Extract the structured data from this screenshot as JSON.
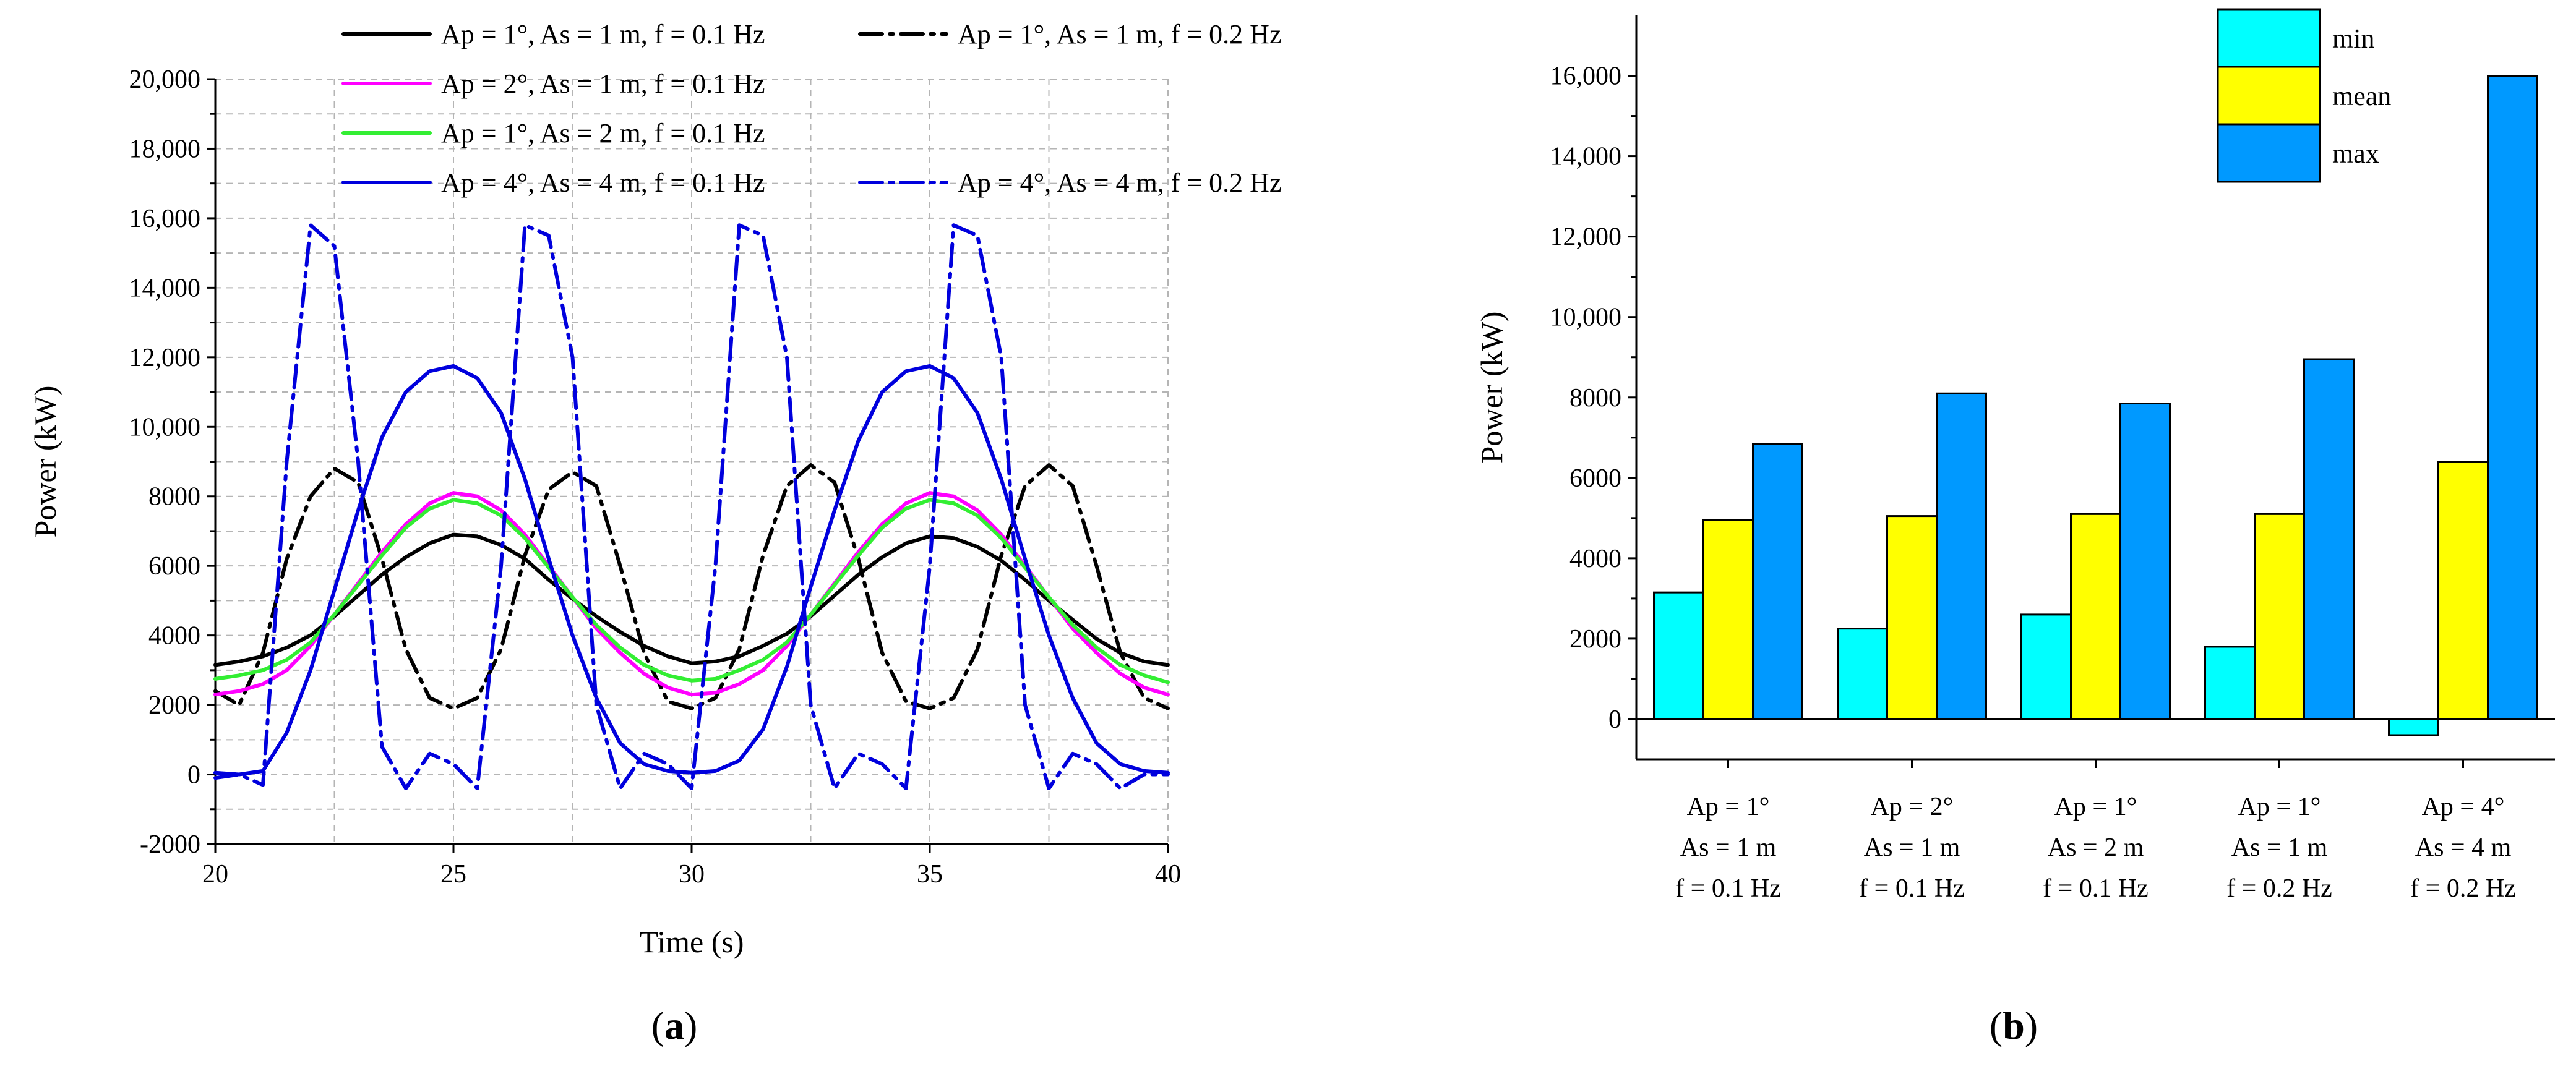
{
  "colors": {
    "black": "#000000",
    "magenta": "#ff00ff",
    "green": "#33ee33",
    "blue": "#0000dd",
    "cyan": "#00ffff",
    "yellow": "#ffff00",
    "sky": "#0099ff"
  },
  "captions": {
    "a": [
      "(",
      "a",
      ")"
    ],
    "b": [
      "(",
      "b",
      ")"
    ]
  },
  "chart_data": [
    {
      "type": "line",
      "xlabel": "Time (s)",
      "ylabel": "Power (kW)",
      "xlim": [
        20,
        40
      ],
      "ylim": [
        -2000,
        20000
      ],
      "xticks": [
        20,
        25,
        30,
        35,
        40
      ],
      "xtick_labels": [
        "20",
        "25",
        "30",
        "35",
        "40"
      ],
      "yticks": [
        -2000,
        0,
        2000,
        4000,
        6000,
        8000,
        10000,
        12000,
        14000,
        16000,
        18000,
        20000
      ],
      "ytick_labels": [
        "-2000",
        "0",
        "2000",
        "4000",
        "6000",
        "8000",
        "10,000",
        "12,000",
        "14,000",
        "16,000",
        "18,000",
        "20,000"
      ],
      "grid": true,
      "legend": "top",
      "x": [
        20,
        20.5,
        21,
        21.5,
        22,
        22.5,
        23,
        23.5,
        24,
        24.5,
        25,
        25.5,
        26,
        26.5,
        27,
        27.5,
        28,
        28.5,
        29,
        29.5,
        30,
        30.5,
        31,
        31.5,
        32,
        32.5,
        33,
        33.5,
        34,
        34.5,
        35,
        35.5,
        36,
        36.5,
        37,
        37.5,
        38,
        38.5,
        39,
        39.5,
        40
      ],
      "series": [
        {
          "name": "Ap = 1°, As = 1 m, f = 0.1 Hz",
          "color": "#000000",
          "dash": "solid",
          "values": [
            3150,
            3250,
            3400,
            3650,
            4000,
            4550,
            5150,
            5750,
            6250,
            6650,
            6900,
            6850,
            6600,
            6200,
            5600,
            5050,
            4550,
            4100,
            3700,
            3400,
            3200,
            3250,
            3400,
            3700,
            4050,
            4550,
            5150,
            5750,
            6250,
            6650,
            6850,
            6800,
            6550,
            6150,
            5600,
            5000,
            4450,
            3900,
            3500,
            3250,
            3150
          ]
        },
        {
          "name": "Ap = 1°, As = 1 m, f = 0.2 Hz",
          "color": "#000000",
          "dash": "dashdot",
          "values": [
            2400,
            2000,
            3500,
            6200,
            8000,
            8800,
            8400,
            6200,
            3600,
            2200,
            1900,
            2200,
            3600,
            6300,
            8200,
            8700,
            8300,
            6000,
            3500,
            2100,
            1900,
            2200,
            3600,
            6300,
            8300,
            8900,
            8400,
            6200,
            3500,
            2100,
            1900,
            2200,
            3600,
            6300,
            8300,
            8900,
            8300,
            6000,
            3500,
            2200,
            1900
          ]
        },
        {
          "name": "Ap = 2°, As = 1 m, f = 0.1 Hz",
          "color": "#ff00ff",
          "dash": "solid",
          "values": [
            2300,
            2400,
            2600,
            3000,
            3700,
            4600,
            5500,
            6400,
            7200,
            7800,
            8100,
            8000,
            7600,
            6900,
            6000,
            5100,
            4200,
            3500,
            2900,
            2500,
            2300,
            2350,
            2600,
            3000,
            3700,
            4600,
            5500,
            6400,
            7200,
            7800,
            8100,
            8000,
            7600,
            6900,
            6000,
            5100,
            4200,
            3500,
            2900,
            2500,
            2300
          ]
        },
        {
          "name": "Ap = 1°, As = 2 m, f = 0.1 Hz",
          "color": "#33ee33",
          "dash": "solid",
          "values": [
            2750,
            2850,
            3000,
            3300,
            3800,
            4600,
            5450,
            6300,
            7100,
            7650,
            7900,
            7800,
            7450,
            6800,
            5950,
            5100,
            4300,
            3650,
            3150,
            2850,
            2700,
            2750,
            3000,
            3300,
            3800,
            4600,
            5450,
            6300,
            7100,
            7650,
            7900,
            7800,
            7450,
            6800,
            5950,
            5100,
            4300,
            3650,
            3150,
            2850,
            2650
          ]
        },
        {
          "name": "Ap = 4°, As = 4 m, f = 0.1 Hz",
          "color": "#0000dd",
          "dash": "solid",
          "values": [
            50,
            0,
            100,
            1200,
            3000,
            5300,
            7600,
            9700,
            11000,
            11600,
            11750,
            11400,
            10400,
            8500,
            6200,
            4000,
            2200,
            900,
            300,
            100,
            50,
            100,
            400,
            1300,
            3100,
            5400,
            7600,
            9600,
            11000,
            11600,
            11750,
            11400,
            10400,
            8500,
            6200,
            4000,
            2200,
            900,
            300,
            100,
            50
          ]
        },
        {
          "name": "Ap = 4°, As = 4 m, f = 0.2 Hz",
          "color": "#0000dd",
          "dash": "dashdot",
          "values": [
            -100,
            0,
            -300,
            9000,
            15800,
            15200,
            9000,
            800,
            -400,
            600,
            300,
            -400,
            6000,
            15800,
            15500,
            12000,
            2000,
            -400,
            600,
            300,
            -400,
            6000,
            15800,
            15500,
            12000,
            2000,
            -400,
            600,
            300,
            -400,
            6000,
            15800,
            15500,
            12000,
            2000,
            -400,
            600,
            300,
            -400,
            0,
            0
          ]
        }
      ]
    },
    {
      "type": "bar",
      "ylabel": "Power (kW)",
      "ylim": [
        -1000,
        17500
      ],
      "yticks": [
        0,
        2000,
        4000,
        6000,
        8000,
        10000,
        12000,
        14000,
        16000
      ],
      "ytick_labels": [
        "0",
        "2000",
        "4000",
        "6000",
        "8000",
        "10,000",
        "12,000",
        "14,000",
        "16,000"
      ],
      "grid": false,
      "legend": "top-right",
      "categories": [
        [
          "Ap = 1°",
          "As = 1 m",
          "f = 0.1 Hz"
        ],
        [
          "Ap = 2°",
          "As = 1 m",
          "f = 0.1 Hz"
        ],
        [
          "Ap = 1°",
          "As = 2 m",
          "f = 0.1 Hz"
        ],
        [
          "Ap = 1°",
          "As = 1 m",
          "f = 0.2 Hz"
        ],
        [
          "Ap = 4°",
          "As = 4 m",
          "f = 0.2 Hz"
        ]
      ],
      "series": [
        {
          "name": "min",
          "color": "#00ffff",
          "values": [
            3150,
            2250,
            2600,
            1800,
            -400
          ]
        },
        {
          "name": "mean",
          "color": "#ffff00",
          "values": [
            4950,
            5050,
            5100,
            5100,
            6400
          ]
        },
        {
          "name": "max",
          "color": "#0099ff",
          "values": [
            6850,
            8100,
            7850,
            8950,
            16000
          ]
        }
      ]
    }
  ]
}
